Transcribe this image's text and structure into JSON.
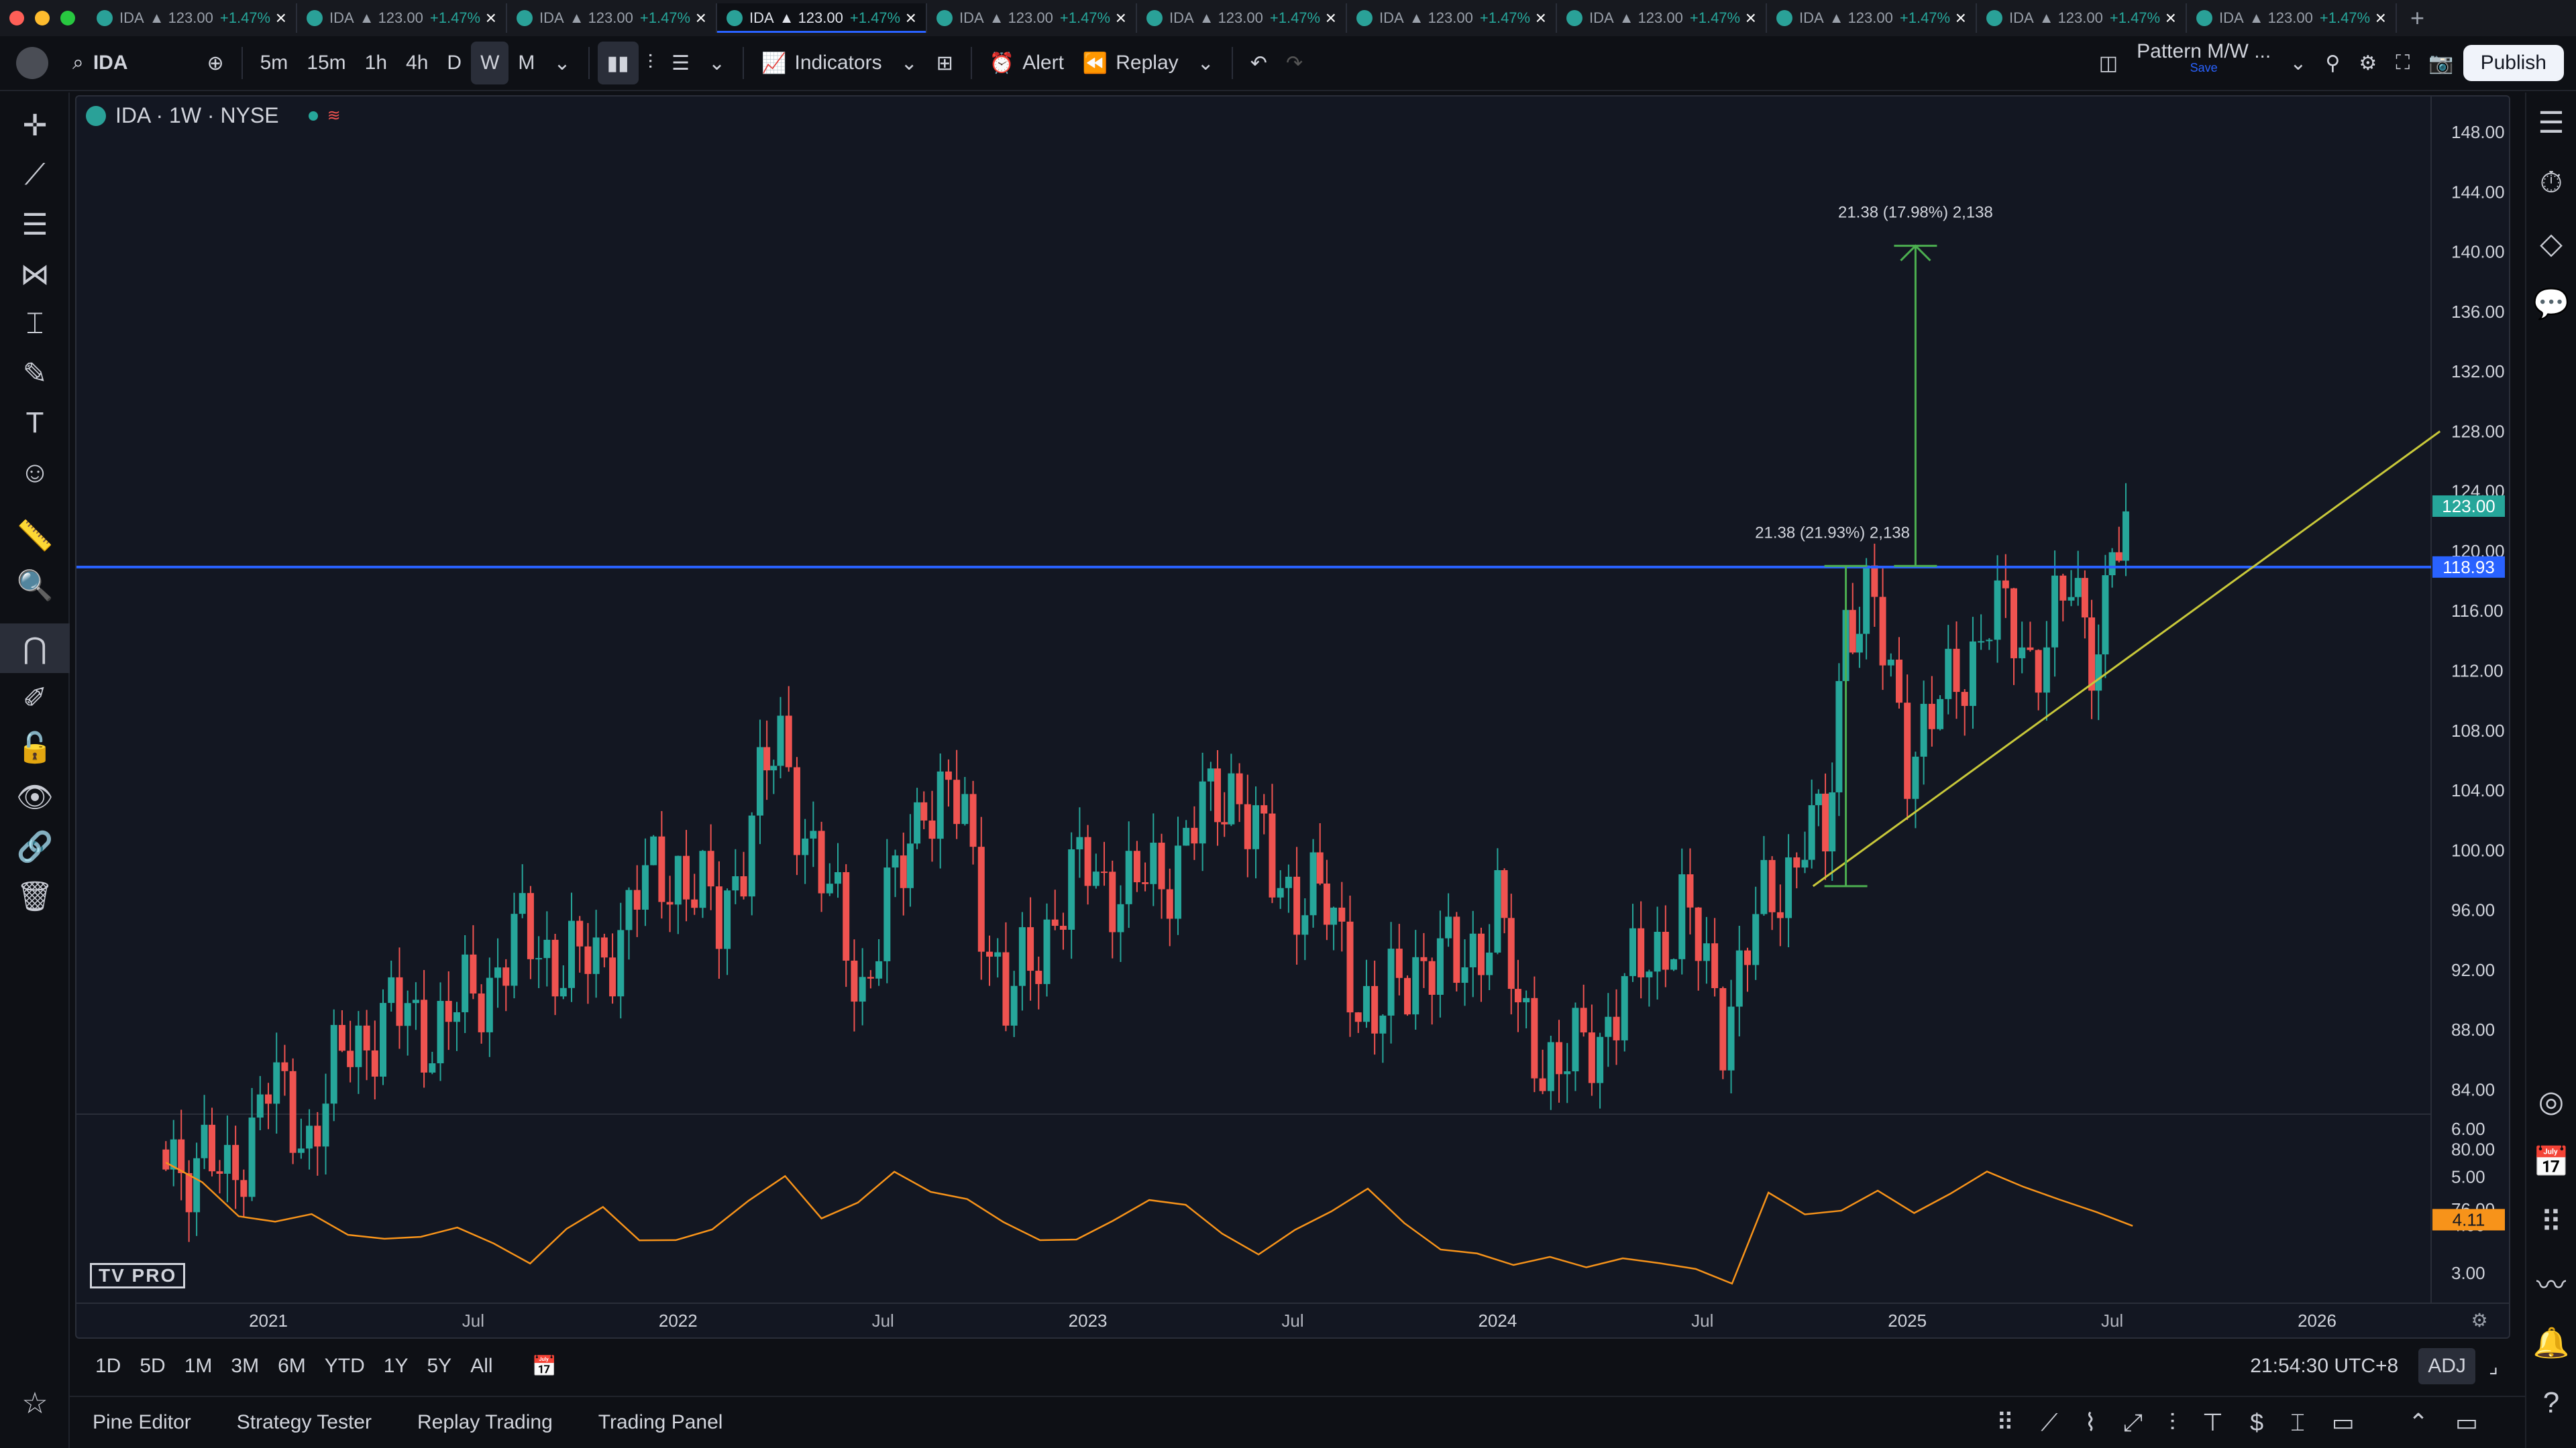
{
  "tabs": [
    {
      "sym": "IDA",
      "price": "▲ 123.00",
      "chg": "+1.47%"
    },
    {
      "sym": "IDA",
      "price": "▲ 123.00",
      "chg": "+1.47%"
    },
    {
      "sym": "IDA",
      "price": "▲ 123.00",
      "chg": "+1.47%"
    },
    {
      "sym": "IDA",
      "price": "▲ 123.00",
      "chg": "+1.47%"
    },
    {
      "sym": "IDA",
      "price": "▲ 123.00",
      "chg": "+1.47%"
    },
    {
      "sym": "IDA",
      "price": "▲ 123.00",
      "chg": "+1.47%"
    },
    {
      "sym": "IDA",
      "price": "▲ 123.00",
      "chg": "+1.47%"
    },
    {
      "sym": "IDA",
      "price": "▲ 123.00",
      "chg": "+1.47%"
    },
    {
      "sym": "IDA",
      "price": "▲ 123.00",
      "chg": "+1.47%"
    },
    {
      "sym": "IDA",
      "price": "▲ 123.00",
      "chg": "+1.47%"
    },
    {
      "sym": "IDA",
      "price": "▲ 123.00",
      "chg": "+1.47%"
    }
  ],
  "toolbar": {
    "symbol": "IDA",
    "intervals": [
      "5m",
      "15m",
      "1h",
      "4h",
      "D",
      "W",
      "M"
    ],
    "selected_interval": "W",
    "indicators": "Indicators",
    "alert": "Alert",
    "replay": "Replay",
    "layout_name": "Pattern M/W ...",
    "layout_save": "Save",
    "publish": "Publish"
  },
  "chart": {
    "title": "IDA · 1W · NYSE",
    "current_price_label": "123.00",
    "line_price_label": "118.93",
    "indicator_label": "4.11",
    "measure_upper": "21.38 (17.98%) 2,138",
    "measure_lower": "21.38 (21.93%) 2,138",
    "time_labels": [
      "2021",
      "Jul",
      "2022",
      "Jul",
      "2023",
      "Jul",
      "2024",
      "Jul",
      "2025",
      "Jul",
      "2026"
    ],
    "logo": "TV PRO"
  },
  "chart_data": {
    "type": "candlestick",
    "price_axis": [
      148.0,
      144.0,
      140.0,
      136.0,
      132.0,
      128.0,
      124.0,
      120.0,
      116.0,
      112.0,
      108.0,
      104.0,
      100.0,
      96.0,
      92.0,
      88.0,
      84.0,
      80.0,
      76.0
    ],
    "indicator_axis": [
      6.0,
      5.0,
      4.0,
      3.0
    ],
    "horizontal_line": 118.93,
    "last_price": 123.0,
    "indicator_last": 4.11,
    "trendline": {
      "from": [
        2024.77,
        97.6
      ],
      "to": [
        2026.3,
        128.0
      ]
    },
    "approx_weekly_closes": [
      [
        2020.75,
        80
      ],
      [
        2020.9,
        78
      ],
      [
        2021.0,
        84
      ],
      [
        2021.1,
        81
      ],
      [
        2021.2,
        87
      ],
      [
        2021.3,
        89
      ],
      [
        2021.4,
        88
      ],
      [
        2021.5,
        90
      ],
      [
        2021.6,
        94
      ],
      [
        2021.7,
        93
      ],
      [
        2021.8,
        92
      ],
      [
        2021.9,
        97
      ],
      [
        2022.0,
        99
      ],
      [
        2022.1,
        95
      ],
      [
        2022.2,
        104
      ],
      [
        2022.25,
        107
      ],
      [
        2022.35,
        98
      ],
      [
        2022.45,
        91
      ],
      [
        2022.55,
        99
      ],
      [
        2022.6,
        104
      ],
      [
        2022.7,
        102
      ],
      [
        2022.8,
        89
      ],
      [
        2022.9,
        95
      ],
      [
        2023.0,
        99
      ],
      [
        2023.1,
        97
      ],
      [
        2023.2,
        99
      ],
      [
        2023.3,
        103
      ],
      [
        2023.35,
        105
      ],
      [
        2023.45,
        98
      ],
      [
        2023.55,
        97
      ],
      [
        2023.6,
        95
      ],
      [
        2023.7,
        88
      ],
      [
        2023.8,
        93
      ],
      [
        2023.9,
        92
      ],
      [
        2024.0,
        96
      ],
      [
        2024.05,
        89
      ],
      [
        2024.15,
        85
      ],
      [
        2024.25,
        88
      ],
      [
        2024.35,
        92
      ],
      [
        2024.45,
        96
      ],
      [
        2024.55,
        89
      ],
      [
        2024.65,
        96
      ],
      [
        2024.75,
        101
      ],
      [
        2024.8,
        100
      ],
      [
        2024.85,
        116
      ],
      [
        2024.9,
        117
      ],
      [
        2025.0,
        107
      ],
      [
        2025.1,
        110
      ],
      [
        2025.2,
        116
      ],
      [
        2025.3,
        113
      ],
      [
        2025.4,
        117
      ],
      [
        2025.45,
        114
      ],
      [
        2025.5,
        119
      ],
      [
        2025.55,
        123
      ]
    ],
    "indicator_series": [
      5.3,
      4.8,
      4.3,
      4.0,
      4.2,
      3.9,
      3.6,
      3.8,
      4.0,
      3.5,
      3.3,
      3.9,
      4.3,
      3.8,
      3.6,
      3.9,
      4.6,
      4.9,
      4.2,
      4.5,
      5.0,
      4.8,
      4.5,
      4.0,
      3.8,
      3.6,
      4.1,
      4.6,
      4.3,
      3.9,
      3.4,
      3.8,
      4.4,
      4.7,
      4.0,
      3.6,
      3.3,
      3.2,
      3.4,
      3.0,
      3.4,
      3.2,
      3.0,
      2.9,
      4.6,
      4.2,
      4.4,
      4.6,
      4.3,
      4.7,
      5.0,
      4.9,
      4.5,
      4.2,
      4.1
    ]
  },
  "bottom": {
    "ranges": [
      "1D",
      "5D",
      "1M",
      "3M",
      "6M",
      "YTD",
      "1Y",
      "5Y",
      "All"
    ],
    "clock": "21:54:30 UTC+8",
    "adj": "ADJ"
  },
  "status": {
    "panels": [
      "Pine Editor",
      "Strategy Tester",
      "Replay Trading",
      "Trading Panel"
    ]
  },
  "colors": {
    "up": "#26a69a",
    "down": "#ef5350",
    "line": "#2962ff",
    "trend": "#c8c83a",
    "measure": "#4caf50",
    "indicator": "#f7931a"
  }
}
